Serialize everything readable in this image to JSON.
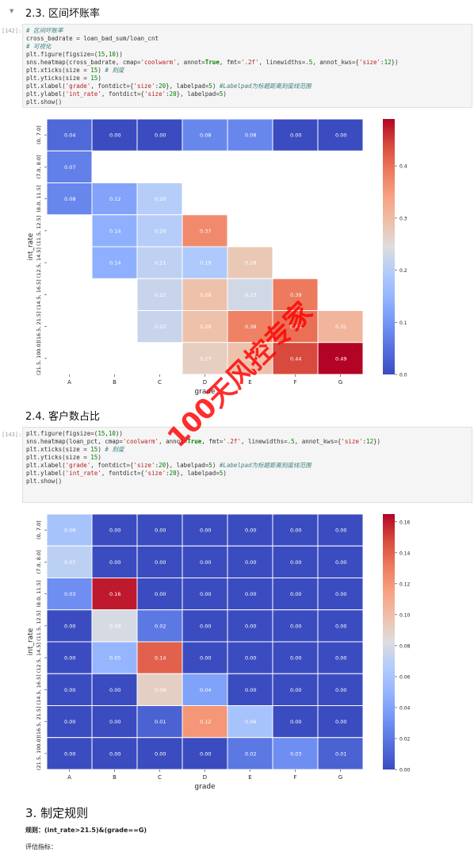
{
  "notebook": {
    "section_2_3": {
      "collapse_icon": "chevron-down-icon",
      "title": "2.3. 区间坏账率"
    },
    "cell_142": {
      "prompt": "[142]:",
      "lines": [
        [
          {
            "t": "# 区间坏账率",
            "c": "cmt"
          }
        ],
        [
          {
            "t": "cross_badrate = loan_bad_sum/loan_cnt",
            "c": ""
          }
        ],
        [
          {
            "t": "# 可视化",
            "c": "cmt"
          }
        ],
        [
          {
            "t": "plt.figure(figsize=(",
            "c": ""
          },
          {
            "t": "15",
            "c": "num"
          },
          {
            "t": ",",
            "c": ""
          },
          {
            "t": "10",
            "c": "num"
          },
          {
            "t": "))",
            "c": ""
          }
        ],
        [
          {
            "t": "sns.heatmap(cross_badrate, cmap=",
            "c": ""
          },
          {
            "t": "'coolwarm'",
            "c": "str"
          },
          {
            "t": ", annot=",
            "c": ""
          },
          {
            "t": "True",
            "c": "kw"
          },
          {
            "t": ", fmt=",
            "c": ""
          },
          {
            "t": "'.2f'",
            "c": "str"
          },
          {
            "t": ", linewidths=.",
            "c": ""
          },
          {
            "t": "5",
            "c": "num"
          },
          {
            "t": ", annot_kws={",
            "c": ""
          },
          {
            "t": "'size'",
            "c": "str"
          },
          {
            "t": ":",
            "c": ""
          },
          {
            "t": "12",
            "c": "num"
          },
          {
            "t": "})",
            "c": ""
          }
        ],
        [
          {
            "t": "plt.xticks(size = ",
            "c": ""
          },
          {
            "t": "15",
            "c": "num"
          },
          {
            "t": ") ",
            "c": ""
          },
          {
            "t": "# 刻度",
            "c": "cmt"
          }
        ],
        [
          {
            "t": "plt.yticks(size = ",
            "c": ""
          },
          {
            "t": "15",
            "c": "num"
          },
          {
            "t": ")",
            "c": ""
          }
        ],
        [
          {
            "t": "plt.xlabel(",
            "c": ""
          },
          {
            "t": "'grade'",
            "c": "str"
          },
          {
            "t": ", fontdict={",
            "c": ""
          },
          {
            "t": "'size'",
            "c": "str"
          },
          {
            "t": ":",
            "c": ""
          },
          {
            "t": "20",
            "c": "num"
          },
          {
            "t": "}, labelpad=",
            "c": ""
          },
          {
            "t": "5",
            "c": "num"
          },
          {
            "t": ") ",
            "c": ""
          },
          {
            "t": "#Labelpad为标题距离刻度线范围",
            "c": "cmt"
          }
        ],
        [
          {
            "t": "plt.ylabel(",
            "c": ""
          },
          {
            "t": "'int_rate'",
            "c": "str"
          },
          {
            "t": ", fontdict={",
            "c": ""
          },
          {
            "t": "'size'",
            "c": "str"
          },
          {
            "t": ":",
            "c": ""
          },
          {
            "t": "20",
            "c": "num"
          },
          {
            "t": "}, labelpad=",
            "c": ""
          },
          {
            "t": "5",
            "c": "num"
          },
          {
            "t": ")",
            "c": ""
          }
        ],
        [
          {
            "t": "plt.show()",
            "c": ""
          }
        ]
      ]
    },
    "section_2_4": {
      "title": "2.4. 客户数占比"
    },
    "cell_143": {
      "prompt": "[143]:",
      "lines": [
        [
          {
            "t": "plt.figure(figsize=(",
            "c": ""
          },
          {
            "t": "15",
            "c": "num"
          },
          {
            "t": ",",
            "c": ""
          },
          {
            "t": "10",
            "c": "num"
          },
          {
            "t": "))",
            "c": ""
          }
        ],
        [
          {
            "t": "sns.heatmap(loan_pct, cmap=",
            "c": ""
          },
          {
            "t": "'coolwarm'",
            "c": "str"
          },
          {
            "t": ", annot=",
            "c": ""
          },
          {
            "t": "True",
            "c": "kw"
          },
          {
            "t": ", fmt=",
            "c": ""
          },
          {
            "t": "'.2f'",
            "c": "str"
          },
          {
            "t": ", linewidths=.",
            "c": ""
          },
          {
            "t": "5",
            "c": "num"
          },
          {
            "t": ", annot_kws={",
            "c": ""
          },
          {
            "t": "'size'",
            "c": "str"
          },
          {
            "t": ":",
            "c": ""
          },
          {
            "t": "12",
            "c": "num"
          },
          {
            "t": "})",
            "c": ""
          }
        ],
        [
          {
            "t": "plt.xticks(size = ",
            "c": ""
          },
          {
            "t": "15",
            "c": "num"
          },
          {
            "t": ") ",
            "c": ""
          },
          {
            "t": "# 刻度",
            "c": "cmt"
          }
        ],
        [
          {
            "t": "plt.yticks(size = ",
            "c": ""
          },
          {
            "t": "15",
            "c": "num"
          },
          {
            "t": ")",
            "c": ""
          }
        ],
        [
          {
            "t": "plt.xlabel(",
            "c": ""
          },
          {
            "t": "'grade'",
            "c": "str"
          },
          {
            "t": ", fontdict={",
            "c": ""
          },
          {
            "t": "'size'",
            "c": "str"
          },
          {
            "t": ":",
            "c": ""
          },
          {
            "t": "20",
            "c": "num"
          },
          {
            "t": "}, labelpad=",
            "c": ""
          },
          {
            "t": "5",
            "c": "num"
          },
          {
            "t": ") ",
            "c": ""
          },
          {
            "t": "#Labelpad为标题距离刻度线范围",
            "c": "cmt"
          }
        ],
        [
          {
            "t": "plt.ylabel(",
            "c": ""
          },
          {
            "t": "'int_rate'",
            "c": "str"
          },
          {
            "t": ", fontdict={",
            "c": ""
          },
          {
            "t": "'size'",
            "c": "str"
          },
          {
            "t": ":",
            "c": ""
          },
          {
            "t": "20",
            "c": "num"
          },
          {
            "t": "}, labelpad=",
            "c": ""
          },
          {
            "t": "5",
            "c": "num"
          },
          {
            "t": ")",
            "c": ""
          }
        ],
        [
          {
            "t": "plt.show()",
            "c": ""
          }
        ]
      ]
    },
    "section_3": {
      "title": "3. 制定规则"
    },
    "rule_text": "规则：(int_rate>21.5)&(grade==G)",
    "eval_text": "评估指标：",
    "watermark": "100天风控专家"
  },
  "chart_data": [
    {
      "type": "heatmap",
      "colormap": "coolwarm",
      "xlabel": "grade",
      "ylabel": "int_rate",
      "x_categories": [
        "A",
        "B",
        "C",
        "D",
        "E",
        "F",
        "G"
      ],
      "y_categories": [
        "(0, 7.0]",
        "(7.0, 8.0]",
        "(8.0, 11.5]",
        "(11.5, 12.5]",
        "(12.5, 14.5]",
        "(14.5, 16.5]",
        "(16.5, 21.5]",
        "(21.5, 100.0]"
      ],
      "values": [
        [
          0.04,
          0.0,
          0.0,
          0.08,
          0.08,
          0.0,
          0.0
        ],
        [
          0.07,
          null,
          null,
          null,
          null,
          null,
          null
        ],
        [
          0.08,
          0.12,
          0.2,
          null,
          null,
          null,
          null
        ],
        [
          null,
          0.14,
          0.2,
          0.37,
          null,
          null,
          null
        ],
        [
          null,
          0.14,
          0.21,
          0.19,
          0.28,
          null,
          null
        ],
        [
          null,
          null,
          0.22,
          0.29,
          0.23,
          0.39,
          null
        ],
        [
          null,
          null,
          0.22,
          0.29,
          0.38,
          0.4,
          0.31
        ],
        [
          null,
          null,
          null,
          0.27,
          0.29,
          0.44,
          0.49
        ]
      ],
      "colorbar_range": [
        0.0,
        0.49
      ],
      "colorbar_ticks": [
        "0.0",
        "0.1",
        "0.2",
        "0.3",
        "0.4"
      ]
    },
    {
      "type": "heatmap",
      "colormap": "coolwarm",
      "xlabel": "grade",
      "ylabel": "int_rate",
      "x_categories": [
        "A",
        "B",
        "C",
        "D",
        "E",
        "F",
        "G"
      ],
      "y_categories": [
        "(0, 7.0]",
        "(7.0, 8.0]",
        "(8.0, 11.5]",
        "(11.5, 12.5]",
        "(12.5, 14.5]",
        "(14.5, 16.5]",
        "(16.5, 21.5]",
        "(21.5, 100.0]"
      ],
      "values": [
        [
          0.06,
          0.0,
          0.0,
          0.0,
          0.0,
          0.0,
          0.0
        ],
        [
          0.07,
          0.0,
          0.0,
          0.0,
          0.0,
          0.0,
          0.0
        ],
        [
          0.03,
          0.16,
          0.0,
          0.0,
          0.0,
          0.0,
          0.0
        ],
        [
          0.0,
          0.08,
          0.02,
          0.0,
          0.0,
          0.0,
          0.0
        ],
        [
          0.0,
          0.05,
          0.14,
          0.0,
          0.0,
          0.0,
          0.0
        ],
        [
          0.0,
          0.0,
          0.09,
          0.04,
          0.0,
          0.0,
          0.0
        ],
        [
          0.0,
          0.0,
          0.01,
          0.12,
          0.06,
          0.0,
          0.0
        ],
        [
          0.0,
          0.0,
          0.0,
          0.0,
          0.02,
          0.03,
          0.01
        ]
      ],
      "colorbar_range": [
        0.0,
        0.165
      ],
      "colorbar_ticks": [
        "0.00",
        "0.02",
        "0.04",
        "0.06",
        "0.08",
        "0.10",
        "0.12",
        "0.14",
        "0.16"
      ]
    }
  ]
}
